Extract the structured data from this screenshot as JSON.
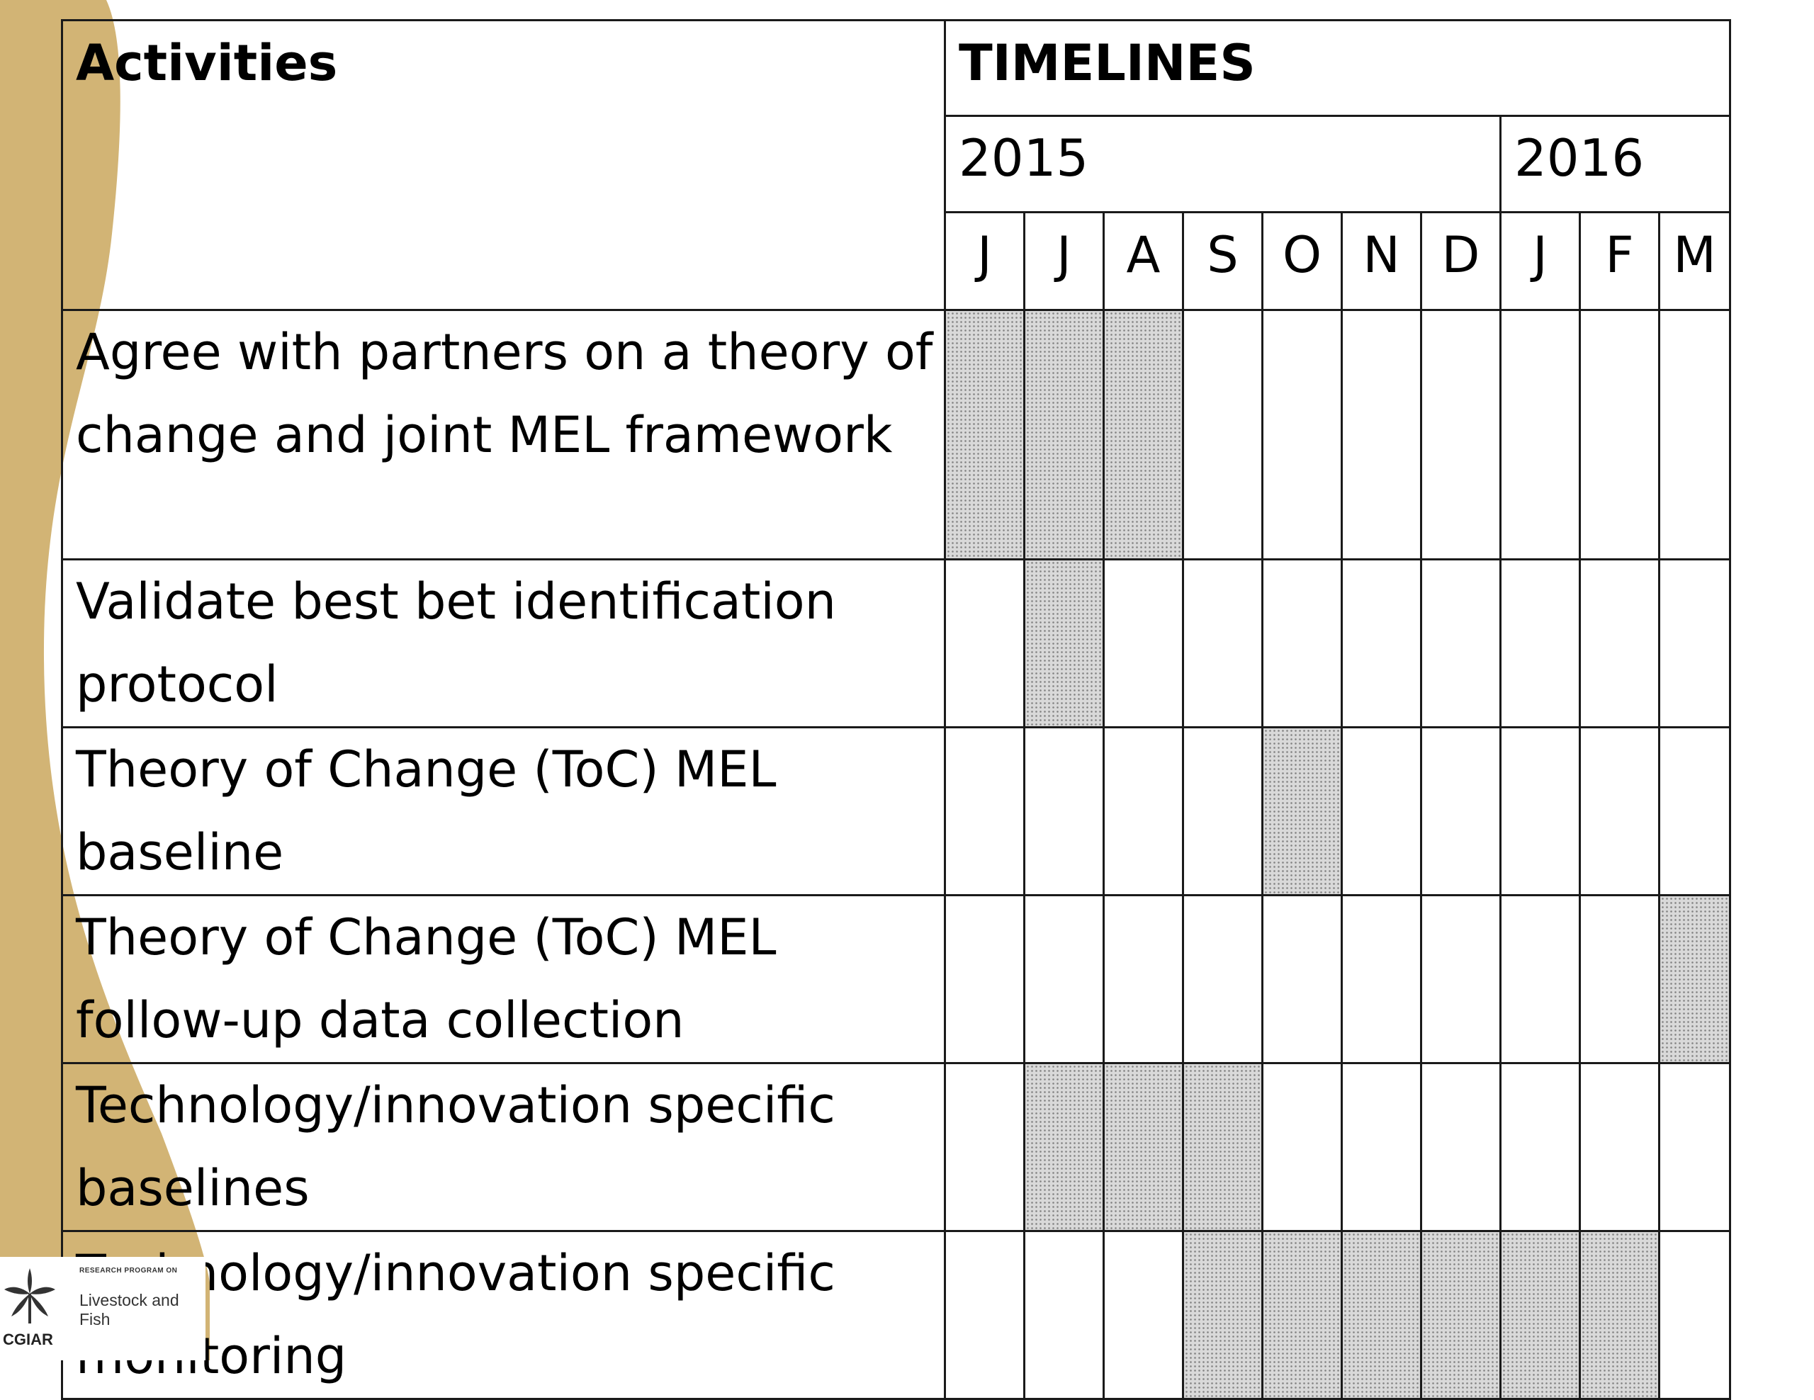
{
  "header": {
    "activities_label": "Activities",
    "timelines_label": "TIMELINES",
    "years": [
      {
        "label": "2015"
      },
      {
        "label": "2016"
      }
    ],
    "months": [
      "J",
      "J",
      "A",
      "S",
      "O",
      "N",
      "D",
      "J",
      "F",
      "M"
    ]
  },
  "rows": [
    {
      "activity": "Agree with partners on a theory of change and joint MEL framework",
      "active": [
        1,
        1,
        1,
        0,
        0,
        0,
        0,
        0,
        0,
        0
      ]
    },
    {
      "activity": "Validate best bet identification protocol",
      "active": [
        0,
        1,
        0,
        0,
        0,
        0,
        0,
        0,
        0,
        0
      ]
    },
    {
      "activity": "Theory of Change (ToC) MEL baseline",
      "active": [
        0,
        0,
        0,
        0,
        1,
        0,
        0,
        0,
        0,
        0
      ]
    },
    {
      "activity": "Theory of Change (ToC) MEL follow-up data collection",
      "active": [
        0,
        0,
        0,
        0,
        0,
        0,
        0,
        0,
        0,
        1
      ]
    },
    {
      "activity": "Technology/innovation specific baselines",
      "active": [
        0,
        1,
        1,
        1,
        0,
        0,
        0,
        0,
        0,
        0
      ]
    },
    {
      "activity": "Technology/innovation specific monitoring",
      "active": [
        0,
        0,
        0,
        1,
        1,
        1,
        1,
        1,
        1,
        0
      ]
    }
  ],
  "logo": {
    "org": "CGIAR",
    "program_small": "RESEARCH PROGRAM ON",
    "program_name": "Livestock and Fish"
  },
  "colors": {
    "swoosh": "#d2b475",
    "shaded_cell": "#d9d9d9"
  }
}
